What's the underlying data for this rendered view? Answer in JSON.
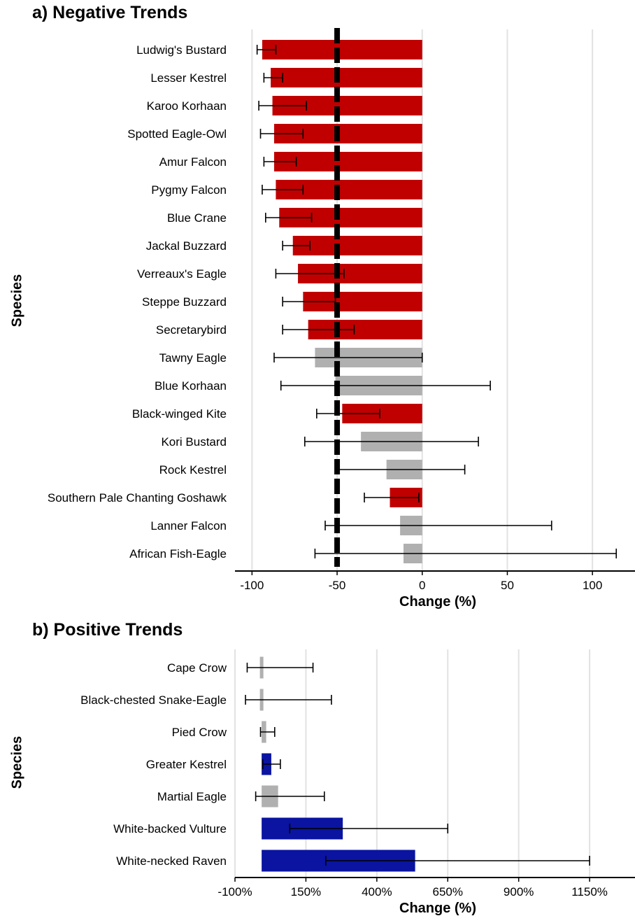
{
  "panels": {
    "a": {
      "title": "a) Negative Trends",
      "ylabel": "Species",
      "xlabel": "Change (%)"
    },
    "b": {
      "title": "b) Positive Trends",
      "ylabel": "Species",
      "xlabel": "Change (%)"
    }
  },
  "colors": {
    "significant_negative": "#c00000",
    "significant_positive": "#0a14a0",
    "not_significant": "#b0b0b0",
    "grid": "#e2e2e2",
    "threshold_line": "#000000"
  },
  "chart_data": [
    {
      "type": "bar",
      "orientation": "horizontal",
      "title": "a) Negative Trends",
      "xlabel": "Change (%)",
      "ylabel": "Species",
      "xlim": [
        -110,
        125
      ],
      "xticks": [
        -100,
        -50,
        0,
        50,
        100
      ],
      "xtick_labels": [
        "-100",
        "-50",
        "0",
        "50",
        "100"
      ],
      "reference_line": -50,
      "grid": true,
      "categories": [
        "Ludwig's Bustard",
        "Lesser Kestrel",
        "Karoo Korhaan",
        "Spotted Eagle-Owl",
        "Amur Falcon",
        "Pygmy Falcon",
        "Blue Crane",
        "Jackal Buzzard",
        "Verreaux's Eagle",
        "Steppe Buzzard",
        "Secretarybird",
        "Tawny Eagle",
        "Blue Korhaan",
        "Black-winged Kite",
        "Kori Bustard",
        "Rock Kestrel",
        "Southern Pale Chanting Goshawk",
        "Lanner Falcon",
        "African Fish-Eagle"
      ],
      "values": [
        -94,
        -89,
        -88,
        -87,
        -87,
        -86,
        -84,
        -76,
        -73,
        -70,
        -67,
        -63,
        -51,
        -47,
        -36,
        -21,
        -19,
        -13,
        -11
      ],
      "ci_low": [
        -97,
        -93,
        -96,
        -95,
        -93,
        -94,
        -92,
        -82,
        -86,
        -82,
        -82,
        -87,
        -83,
        -62,
        -69,
        -50,
        -34,
        -57,
        -63
      ],
      "ci_high": [
        -86,
        -82,
        -68,
        -70,
        -74,
        -70,
        -65,
        -66,
        -46,
        -51,
        -40,
        0,
        40,
        -25,
        33,
        25,
        -2,
        76,
        114
      ],
      "significant": [
        true,
        true,
        true,
        true,
        true,
        true,
        true,
        true,
        true,
        true,
        true,
        false,
        false,
        true,
        false,
        false,
        true,
        false,
        false
      ]
    },
    {
      "type": "bar",
      "orientation": "horizontal",
      "title": "b) Positive Trends",
      "xlabel": "Change (%)",
      "ylabel": "Species",
      "xlim": [
        -100,
        1310
      ],
      "xticks": [
        -100,
        150,
        400,
        650,
        900,
        1150
      ],
      "xtick_labels": [
        "-100%",
        "150%",
        "400%",
        "650%",
        "900%",
        "1150%"
      ],
      "grid": true,
      "categories": [
        "Cape Crow",
        "Black-chested Snake-Eagle",
        "Pied Crow",
        "Greater Kestrel",
        "Martial Eagle",
        "White-backed Vulture",
        "White-necked Raven"
      ],
      "values": [
        2,
        3,
        10,
        28,
        52,
        280,
        535
      ],
      "ci_low": [
        -57,
        -63,
        -10,
        -2,
        -27,
        93,
        220
      ],
      "ci_high": [
        175,
        240,
        40,
        60,
        215,
        650,
        1150
      ],
      "significant": [
        false,
        false,
        false,
        true,
        false,
        true,
        true
      ]
    }
  ]
}
